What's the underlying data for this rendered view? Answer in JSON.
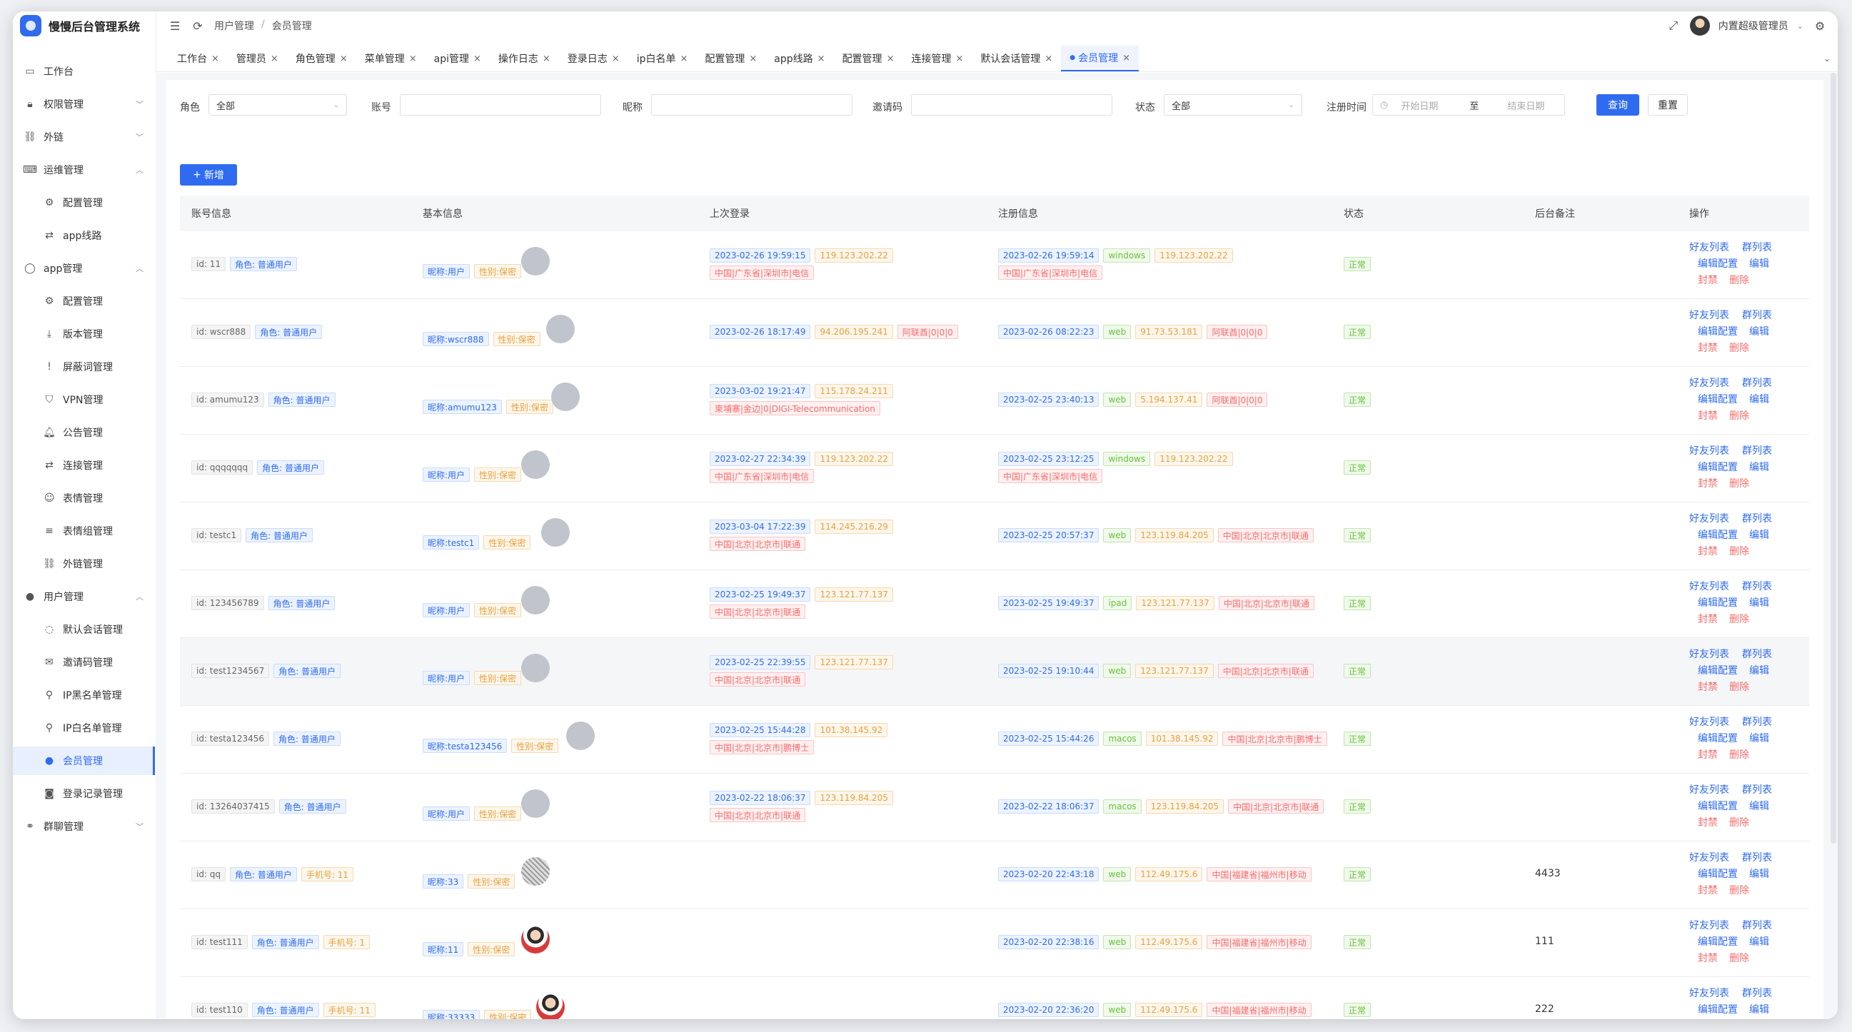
{
  "app": {
    "title": "慢慢后台管理系统"
  },
  "header": {
    "breadcrumb": [
      "用户管理",
      "会员管理"
    ],
    "user_name": "内置超级管理员"
  },
  "sidebar": {
    "items": [
      {
        "label": "工作台",
        "icon": "monitor-icon",
        "level": 0,
        "arrow": ""
      },
      {
        "label": "权限管理",
        "icon": "lock-icon",
        "level": 0,
        "arrow": "down"
      },
      {
        "label": "外链",
        "icon": "link-icon",
        "level": 0,
        "arrow": "down"
      },
      {
        "label": "运维管理",
        "icon": "keyboard-icon",
        "level": 0,
        "arrow": "up"
      },
      {
        "label": "配置管理",
        "icon": "gear-icon",
        "level": 1,
        "arrow": ""
      },
      {
        "label": "app线路",
        "icon": "route-icon",
        "level": 1,
        "arrow": ""
      },
      {
        "label": "app管理",
        "icon": "app-icon",
        "level": 0,
        "arrow": "up"
      },
      {
        "label": "配置管理",
        "icon": "gear-icon",
        "level": 1,
        "arrow": ""
      },
      {
        "label": "版本管理",
        "icon": "download-icon",
        "level": 1,
        "arrow": ""
      },
      {
        "label": "屏蔽词管理",
        "icon": "alert-icon",
        "level": 1,
        "arrow": ""
      },
      {
        "label": "VPN管理",
        "icon": "shield-icon",
        "level": 1,
        "arrow": ""
      },
      {
        "label": "公告管理",
        "icon": "bell-icon",
        "level": 1,
        "arrow": ""
      },
      {
        "label": "连接管理",
        "icon": "connect-icon",
        "level": 1,
        "arrow": ""
      },
      {
        "label": "表情管理",
        "icon": "smile-icon",
        "level": 1,
        "arrow": ""
      },
      {
        "label": "表情组管理",
        "icon": "layers-icon",
        "level": 1,
        "arrow": ""
      },
      {
        "label": "外链管理",
        "icon": "link-icon",
        "level": 1,
        "arrow": ""
      },
      {
        "label": "用户管理",
        "icon": "user-icon",
        "level": 0,
        "arrow": "up"
      },
      {
        "label": "默认会话管理",
        "icon": "chat-icon",
        "level": 1,
        "arrow": ""
      },
      {
        "label": "邀请码管理",
        "icon": "invite-icon",
        "level": 1,
        "arrow": ""
      },
      {
        "label": "IP黑名单管理",
        "icon": "pin-icon",
        "level": 1,
        "arrow": ""
      },
      {
        "label": "IP白名单管理",
        "icon": "pin-outline-icon",
        "level": 1,
        "arrow": ""
      },
      {
        "label": "会员管理",
        "icon": "member-icon",
        "level": 1,
        "arrow": "",
        "active": true
      },
      {
        "label": "登录记录管理",
        "icon": "camera-icon",
        "level": 1,
        "arrow": ""
      },
      {
        "label": "群聊管理",
        "icon": "group-icon",
        "level": 0,
        "arrow": "down"
      }
    ]
  },
  "tabs": [
    {
      "label": "工作台"
    },
    {
      "label": "管理员"
    },
    {
      "label": "角色管理"
    },
    {
      "label": "菜单管理"
    },
    {
      "label": "api管理"
    },
    {
      "label": "操作日志"
    },
    {
      "label": "登录日志"
    },
    {
      "label": "ip白名单"
    },
    {
      "label": "配置管理"
    },
    {
      "label": "app线路"
    },
    {
      "label": "配置管理"
    },
    {
      "label": "连接管理"
    },
    {
      "label": "默认会话管理"
    },
    {
      "label": "会员管理",
      "active": true
    }
  ],
  "filters": {
    "role_label": "角色",
    "role_value": "全部",
    "account_label": "账号",
    "account_value": "",
    "nickname_label": "昵称",
    "nickname_value": "",
    "invite_label": "邀请码",
    "invite_value": "",
    "status_label": "状态",
    "status_value": "全部",
    "regtime_label": "注册时间",
    "start_placeholder": "开始日期",
    "range_sep": "至",
    "end_placeholder": "结束日期",
    "search_button": "查询",
    "reset_button": "重置"
  },
  "add_button": "新增",
  "table": {
    "columns": [
      "账号信息",
      "基本信息",
      "上次登录",
      "注册信息",
      "状态",
      "后台备注",
      "操作"
    ],
    "op_labels": {
      "friends": "好友列表",
      "groups": "群列表",
      "edit_config": "编辑配置",
      "edit": "编辑",
      "ban": "封禁",
      "delete": "删除"
    },
    "rows": [
      {
        "id": "id: 11",
        "role": "角色: 普通用户",
        "phone": "",
        "nickname": "昵称:用户",
        "gender": "性别:保密",
        "avatar": "gray",
        "last_time": "2023-02-26 19:59:15",
        "last_ip": "119.123.202.22",
        "last_loc": "中国|广东省|深圳市|电信",
        "reg_time": "2023-02-26 19:59:14",
        "reg_platform": "windows",
        "reg_ip": "119.123.202.22",
        "reg_loc": "中国|广东省|深圳市|电信",
        "reg_loc_wrap": true,
        "status": "正常",
        "remark": ""
      },
      {
        "id": "id: wscr888",
        "role": "角色: 普通用户",
        "phone": "",
        "nickname": "昵称:wscr888",
        "gender": "性别:保密",
        "avatar": "gray",
        "last_time": "2023-02-26 18:17:49",
        "last_ip": "94.206.195.241",
        "last_loc": "阿联酋|0|0|0",
        "last_inline": true,
        "reg_time": "2023-02-26 08:22:23",
        "reg_platform": "web",
        "reg_ip": "91.73.53.181",
        "reg_loc": "阿联酋|0|0|0",
        "status": "正常",
        "remark": ""
      },
      {
        "id": "id: amumu123",
        "role": "角色: 普通用户",
        "phone": "",
        "nickname": "昵称:amumu123",
        "gender": "性别:保密",
        "avatar": "gray",
        "last_time": "2023-03-02 19:21:47",
        "last_ip": "115.178.24.211",
        "last_loc": "柬埔寨|金边|0|DIGI-Telecommunication",
        "reg_time": "2023-02-25 23:40:13",
        "reg_platform": "web",
        "reg_ip": "5.194.137.41",
        "reg_loc": "阿联酋|0|0|0",
        "status": "正常",
        "remark": ""
      },
      {
        "id": "id: qqqqqqq",
        "role": "角色: 普通用户",
        "phone": "",
        "nickname": "昵称:用户",
        "gender": "性别:保密",
        "avatar": "gray",
        "last_time": "2023-02-27 22:34:39",
        "last_ip": "119.123.202.22",
        "last_loc": "中国|广东省|深圳市|电信",
        "reg_time": "2023-02-25 23:12:25",
        "reg_platform": "windows",
        "reg_ip": "119.123.202.22",
        "reg_loc": "中国|广东省|深圳市|电信",
        "reg_loc_wrap": true,
        "status": "正常",
        "remark": ""
      },
      {
        "id": "id: testc1",
        "role": "角色: 普通用户",
        "phone": "",
        "nickname": "昵称:testc1",
        "gender": "性别:保密",
        "avatar": "gray",
        "last_time": "2023-03-04 17:22:39",
        "last_ip": "114.245.216.29",
        "last_loc": "中国|北京|北京市|联通",
        "reg_time": "2023-02-25 20:57:37",
        "reg_platform": "web",
        "reg_ip": "123.119.84.205",
        "reg_loc": "中国|北京|北京市|联通",
        "status": "正常",
        "remark": ""
      },
      {
        "id": "id: 123456789",
        "role": "角色: 普通用户",
        "phone": "",
        "nickname": "昵称:用户",
        "gender": "性别:保密",
        "avatar": "gray",
        "last_time": "2023-02-25 19:49:37",
        "last_ip": "123.121.77.137",
        "last_loc": "中国|北京|北京市|联通",
        "reg_time": "2023-02-25 19:49:37",
        "reg_platform": "ipad",
        "reg_ip": "123.121.77.137",
        "reg_loc": "中国|北京|北京市|联通",
        "status": "正常",
        "remark": ""
      },
      {
        "id": "id: test1234567",
        "role": "角色: 普通用户",
        "phone": "",
        "nickname": "昵称:用户",
        "gender": "性别:保密",
        "avatar": "gray",
        "last_time": "2023-02-25 22:39:55",
        "last_ip": "123.121.77.137",
        "last_loc": "中国|北京|北京市|联通",
        "reg_time": "2023-02-25 19:10:44",
        "reg_platform": "web",
        "reg_ip": "123.121.77.137",
        "reg_loc": "中国|北京|北京市|联通",
        "status": "正常",
        "remark": "",
        "highlight": true
      },
      {
        "id": "id: testa123456",
        "role": "角色: 普通用户",
        "phone": "",
        "nickname": "昵称:testa123456",
        "gender": "性别:保密",
        "avatar": "gray",
        "last_time": "2023-02-25 15:44:28",
        "last_ip": "101.38.145.92",
        "last_loc": "中国|北京|北京市|鹏博士",
        "reg_time": "2023-02-25 15:44:26",
        "reg_platform": "macos",
        "reg_ip": "101.38.145.92",
        "reg_loc": "中国|北京|北京市|鹏博士",
        "status": "正常",
        "remark": ""
      },
      {
        "id": "id: 13264037415",
        "role": "角色: 普通用户",
        "phone": "",
        "nickname": "昵称:用户",
        "gender": "性别:保密",
        "avatar": "gray",
        "last_time": "2023-02-22 18:06:37",
        "last_ip": "123.119.84.205",
        "last_loc": "中国|北京|北京市|联通",
        "reg_time": "2023-02-22 18:06:37",
        "reg_platform": "macos",
        "reg_ip": "123.119.84.205",
        "reg_loc": "中国|北京|北京市|联通",
        "status": "正常",
        "remark": ""
      },
      {
        "id": "id: qq",
        "role": "角色: 普通用户",
        "phone": "手机号: 11",
        "nickname": "昵称:33",
        "gender": "性别:保密",
        "avatar": "pattern",
        "last_time": "",
        "last_ip": "",
        "last_loc": "",
        "reg_time": "2023-02-20 22:43:18",
        "reg_platform": "web",
        "reg_ip": "112.49.175.6",
        "reg_loc": "中国|福建省|福州市|移动",
        "status": "正常",
        "remark": "4433"
      },
      {
        "id": "id: test111",
        "role": "角色: 普通用户",
        "phone": "手机号: 1",
        "nickname": "昵称:11",
        "gender": "性别:保密",
        "avatar": "person",
        "last_time": "",
        "last_ip": "",
        "last_loc": "",
        "reg_time": "2023-02-20 22:38:16",
        "reg_platform": "web",
        "reg_ip": "112.49.175.6",
        "reg_loc": "中国|福建省|福州市|移动",
        "status": "正常",
        "remark": "111"
      },
      {
        "id": "id: test110",
        "role": "角色: 普通用户",
        "phone": "手机号: 11",
        "nickname": "昵称:33333",
        "gender": "性别:保密",
        "avatar": "person",
        "last_time": "",
        "last_ip": "",
        "last_loc": "",
        "reg_time": "2023-02-20 22:36:20",
        "reg_platform": "web",
        "reg_ip": "112.49.175.6",
        "reg_loc": "中国|福建省|福州市|移动",
        "status": "正常",
        "remark": "222"
      }
    ]
  },
  "colors": {
    "accent": "#2f6bf0",
    "danger": "#f56c6c",
    "success": "#67c23a",
    "warning": "#e6a23c"
  }
}
